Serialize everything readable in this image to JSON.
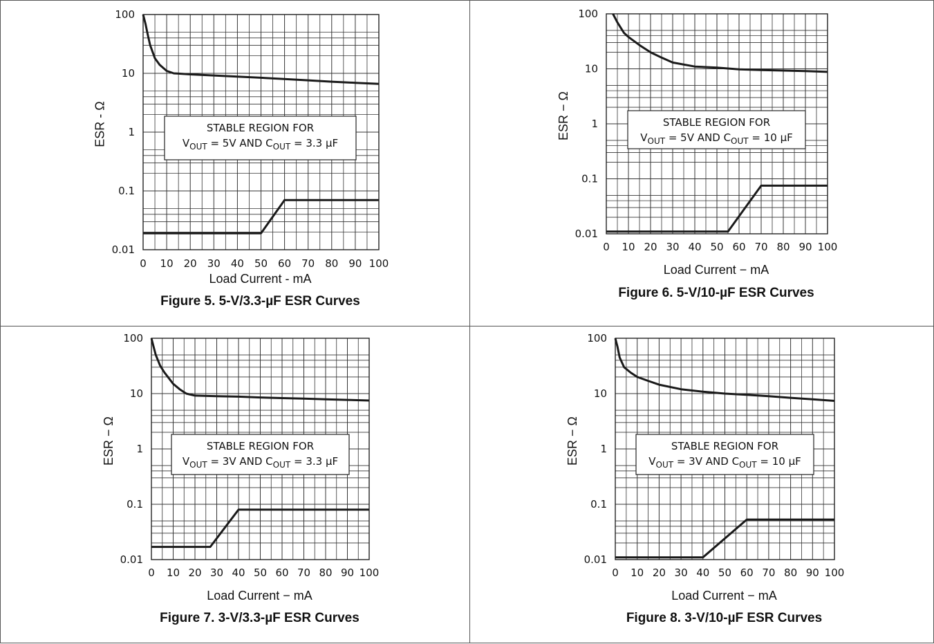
{
  "chart_data": [
    {
      "type": "line",
      "caption": "Figure 5. 5-V/3.3-µF ESR Curves",
      "xlabel": "Load Current - mA",
      "ylabel": "ESR - Ω",
      "xlim": [
        0,
        100
      ],
      "ylim": [
        0.01,
        100
      ],
      "y_scale": "log",
      "grid": true,
      "x_ticks": [
        "0",
        "10",
        "20",
        "30",
        "40",
        "50",
        "60",
        "70",
        "80",
        "90",
        "100"
      ],
      "y_ticks": [
        "100",
        "10",
        "1",
        "0.1",
        "0.01"
      ],
      "annotation": {
        "line1": "STABLE REGION FOR",
        "v_main": "V",
        "v_sub": "OUT",
        "v_val": " = 5V  AND  ",
        "c_main": "C",
        "c_sub": "OUT",
        "c_val": " = 3.3 μF"
      },
      "series": [
        {
          "x": [
            0,
            1,
            2,
            3,
            5,
            7,
            10,
            13,
            20,
            30,
            40,
            50,
            60,
            70,
            80,
            90,
            100
          ],
          "y": [
            100,
            70,
            45,
            30,
            18,
            14,
            11,
            10,
            9.6,
            9.2,
            8.8,
            8.4,
            8,
            7.6,
            7.2,
            6.9,
            6.6
          ]
        },
        {
          "x": [
            0,
            50,
            60,
            100
          ],
          "y": [
            0.019,
            0.019,
            0.07,
            0.07
          ]
        }
      ]
    },
    {
      "type": "line",
      "caption": "Figure 6. 5-V/10-µF ESR Curves",
      "xlabel": "Load Current − mA",
      "ylabel": "ESR − Ω",
      "xlim": [
        0,
        100
      ],
      "ylim": [
        0.01,
        100
      ],
      "y_scale": "log",
      "grid": true,
      "x_ticks": [
        "0",
        "10",
        "20",
        "30",
        "40",
        "50",
        "60",
        "70",
        "80",
        "90",
        "100"
      ],
      "y_ticks": [
        "100",
        "10",
        "1",
        "0.1",
        "0.01"
      ],
      "annotation": {
        "line1": "STABLE REGION FOR",
        "v_main": "V",
        "v_sub": "OUT",
        "v_val": " = 5V  AND  ",
        "c_main": "C",
        "c_sub": "OUT",
        "c_val": " = 10 μF"
      },
      "series": [
        {
          "x": [
            3,
            5,
            8,
            10,
            15,
            20,
            25,
            30,
            40,
            50,
            60,
            70,
            80,
            90,
            100
          ],
          "y": [
            100,
            70,
            45,
            38,
            27,
            20,
            16,
            13,
            11,
            10.5,
            9.8,
            9.5,
            9.3,
            9.1,
            8.8
          ]
        },
        {
          "x": [
            0,
            55,
            70,
            100
          ],
          "y": [
            0.011,
            0.011,
            0.075,
            0.075
          ]
        }
      ]
    },
    {
      "type": "line",
      "caption": "Figure 7. 3-V/3.3-µF ESR Curves",
      "xlabel": "Load Current − mA",
      "ylabel": "ESR − Ω",
      "xlim": [
        0,
        100
      ],
      "ylim": [
        0.01,
        100
      ],
      "y_scale": "log",
      "grid": true,
      "x_ticks": [
        "0",
        "10",
        "20",
        "30",
        "40",
        "50",
        "60",
        "70",
        "80",
        "90",
        "100"
      ],
      "y_ticks": [
        "100",
        "10",
        "1",
        "0.1",
        "0.01"
      ],
      "annotation": {
        "line1": "STABLE REGION FOR",
        "v_main": "V",
        "v_sub": "OUT",
        "v_val": " = 3V  AND  ",
        "c_main": "C",
        "c_sub": "OUT",
        "c_val": " = 3.3 μF"
      },
      "series": [
        {
          "x": [
            0,
            1,
            2,
            4,
            6,
            8,
            10,
            13,
            16,
            20,
            30,
            40,
            50,
            60,
            70,
            80,
            90,
            100
          ],
          "y": [
            100,
            70,
            50,
            32,
            24,
            19,
            15,
            12,
            10,
            9.2,
            9,
            8.8,
            8.5,
            8.3,
            8.1,
            7.9,
            7.7,
            7.5
          ]
        },
        {
          "x": [
            0,
            27,
            40,
            100
          ],
          "y": [
            0.017,
            0.017,
            0.08,
            0.08
          ]
        }
      ]
    },
    {
      "type": "line",
      "caption": "Figure 8. 3-V/10-µF ESR Curves",
      "xlabel": "Load Current − mA",
      "ylabel": "ESR − Ω",
      "xlim": [
        0,
        100
      ],
      "ylim": [
        0.01,
        100
      ],
      "y_scale": "log",
      "grid": true,
      "x_ticks": [
        "0",
        "10",
        "20",
        "30",
        "40",
        "50",
        "60",
        "70",
        "80",
        "90",
        "100"
      ],
      "y_ticks": [
        "100",
        "10",
        "1",
        "0.1",
        "0.01"
      ],
      "annotation": {
        "line1": "STABLE REGION FOR",
        "v_main": "V",
        "v_sub": "OUT",
        "v_val": " = 3V  AND  ",
        "c_main": "C",
        "c_sub": "OUT",
        "c_val": " = 10 μF"
      },
      "series": [
        {
          "x": [
            0,
            1,
            2,
            4,
            7,
            10,
            15,
            20,
            30,
            40,
            50,
            60,
            70,
            80,
            90,
            100
          ],
          "y": [
            100,
            70,
            45,
            30,
            24,
            20,
            17,
            14.5,
            12,
            10.8,
            10,
            9.5,
            9,
            8.4,
            7.9,
            7.4
          ]
        },
        {
          "x": [
            0,
            40,
            60,
            100
          ],
          "y": [
            0.011,
            0.011,
            0.053,
            0.053
          ]
        }
      ]
    }
  ]
}
